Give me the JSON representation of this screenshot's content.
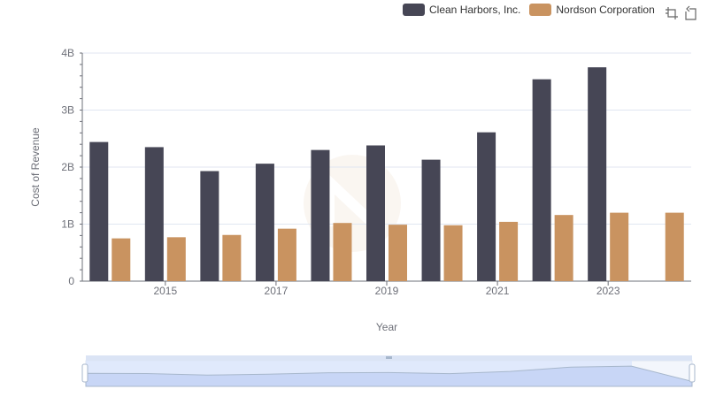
{
  "chart_data": {
    "type": "bar",
    "title": "",
    "xlabel": "Year",
    "ylabel": "Cost of Revenue",
    "categories": [
      "2014",
      "2015",
      "2016",
      "2017",
      "2018",
      "2019",
      "2020",
      "2021",
      "2022",
      "2023",
      "2024"
    ],
    "x_tick_labels": [
      "2015",
      "2017",
      "2019",
      "2021",
      "2023"
    ],
    "y_tick_labels": [
      "0",
      "1B",
      "2B",
      "3B",
      "4B"
    ],
    "ylim": [
      0,
      4000000000
    ],
    "series": [
      {
        "name": "Clean Harbors, Inc.",
        "color": "#464655",
        "values": [
          2440000000,
          2350000000,
          1930000000,
          2060000000,
          2300000000,
          2380000000,
          2130000000,
          2610000000,
          3540000000,
          3750000000,
          null
        ]
      },
      {
        "name": "Nordson Corporation",
        "color": "#c99360",
        "values": [
          750000000,
          770000000,
          810000000,
          920000000,
          1020000000,
          990000000,
          980000000,
          1040000000,
          1160000000,
          1200000000,
          1200000000
        ]
      }
    ],
    "legend_position": "top-right",
    "grid": true
  },
  "legend": {
    "items": [
      {
        "label": "Clean Harbors, Inc.",
        "color": "#464655"
      },
      {
        "label": "Nordson Corporation",
        "color": "#c99360"
      }
    ]
  },
  "toolbox": {
    "zoom_icon": "zoom-select-icon",
    "reset_icon": "zoom-reset-icon"
  },
  "colors": {
    "grid": "#e0e6f1",
    "axis": "#6e7079",
    "datazoom_fill": "#dbe6fb",
    "datazoom_border": "#c5d2ee",
    "datazoom_line": "#a7b7cc"
  }
}
